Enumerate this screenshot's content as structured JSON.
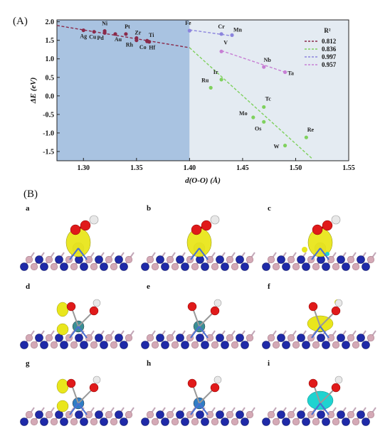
{
  "panel_a_label": "(A)",
  "panel_b_label": "(B)",
  "chart_data": {
    "type": "scatter",
    "xlabel": "d(O-O) (Å)",
    "ylabel": "ΔE (eV)",
    "xlim": [
      1.275,
      1.55
    ],
    "ylim": [
      -1.75,
      2.05
    ],
    "x_ticks": [
      "1.30",
      "1.35",
      "1.40",
      "1.45",
      "1.50",
      "1.55"
    ],
    "y_ticks": [
      "2.0",
      "1.5",
      "1.0",
      "0.5",
      "0.0",
      "-0.5",
      "-1.0",
      "-1.5"
    ],
    "legend_title": "R²",
    "regions": [
      {
        "x_from": 1.275,
        "x_to": 1.4,
        "color": "#a9c3e1"
      },
      {
        "x_from": 1.4,
        "x_to": 1.55,
        "color": "#e4ebf2"
      }
    ],
    "series": [
      {
        "name": "0.812",
        "color": "#8a2a4a",
        "points": [
          {
            "label": "Ag",
            "x": 1.3,
            "y": 1.77
          },
          {
            "label": "Cu",
            "x": 1.31,
            "y": 1.73
          },
          {
            "label": "Ni",
            "x": 1.32,
            "y": 1.75
          },
          {
            "label": "Pd",
            "x": 1.32,
            "y": 1.7
          },
          {
            "label": "Au",
            "x": 1.33,
            "y": 1.67
          },
          {
            "label": "Pt",
            "x": 1.34,
            "y": 1.67
          },
          {
            "label": "Zr",
            "x": 1.35,
            "y": 1.56
          },
          {
            "label": "Rh",
            "x": 1.35,
            "y": 1.5
          },
          {
            "label": "Ti",
            "x": 1.36,
            "y": 1.49
          },
          {
            "label": "Co",
            "x": 1.36,
            "y": 1.47
          },
          {
            "label": "Hf",
            "x": 1.362,
            "y": 1.46
          }
        ],
        "fit": {
          "x": [
            1.275,
            1.4
          ],
          "y": [
            1.9,
            1.3
          ]
        }
      },
      {
        "name": "0.836",
        "color": "#7fd15e",
        "points": [
          {
            "label": "Ir",
            "x": 1.43,
            "y": 0.44
          },
          {
            "label": "Ru",
            "x": 1.42,
            "y": 0.22
          },
          {
            "label": "Tc",
            "x": 1.47,
            "y": -0.3
          },
          {
            "label": "Mo",
            "x": 1.46,
            "y": -0.58
          },
          {
            "label": "Os",
            "x": 1.47,
            "y": -0.7
          },
          {
            "label": "Re",
            "x": 1.51,
            "y": -1.12
          },
          {
            "label": "W",
            "x": 1.49,
            "y": -1.34
          }
        ],
        "fit": {
          "x": [
            1.4,
            1.515
          ],
          "y": [
            1.3,
            -1.68
          ]
        }
      },
      {
        "name": "0.997",
        "color": "#8b84dd",
        "points": [
          {
            "label": "Fe",
            "x": 1.4,
            "y": 1.76
          },
          {
            "label": "Cr",
            "x": 1.43,
            "y": 1.67
          },
          {
            "label": "Mn",
            "x": 1.44,
            "y": 1.64
          }
        ],
        "fit": {
          "x": [
            1.4,
            1.44
          ],
          "y": [
            1.78,
            1.62
          ]
        }
      },
      {
        "name": "0.957",
        "color": "#c77fd4",
        "points": [
          {
            "label": "V",
            "x": 1.43,
            "y": 1.2
          },
          {
            "label": "Nb",
            "x": 1.47,
            "y": 0.78
          },
          {
            "label": "Ta",
            "x": 1.49,
            "y": 0.64
          }
        ],
        "fit": {
          "x": [
            1.43,
            1.49
          ],
          "y": [
            1.22,
            0.64
          ]
        }
      }
    ]
  },
  "structures": [
    {
      "label": "a",
      "variant": "big-yellow",
      "metal": "#9e9e9e"
    },
    {
      "label": "b",
      "variant": "big-yellow",
      "metal": "#9e9e9e"
    },
    {
      "label": "c",
      "variant": "yellow-cyan",
      "metal": "#9e9e9e"
    },
    {
      "label": "d",
      "variant": "split-yellow",
      "metal": "#3a8f95"
    },
    {
      "label": "e",
      "variant": "none",
      "metal": "#3a8f95"
    },
    {
      "label": "f",
      "variant": "lobe-yellow",
      "metal": "#3a8f95"
    },
    {
      "label": "g",
      "variant": "split-yellow",
      "metal": "#2f7ec4"
    },
    {
      "label": "h",
      "variant": "none",
      "metal": "#2f7ec4"
    },
    {
      "label": "i",
      "variant": "cyan",
      "metal": "#2f7ec4"
    }
  ]
}
